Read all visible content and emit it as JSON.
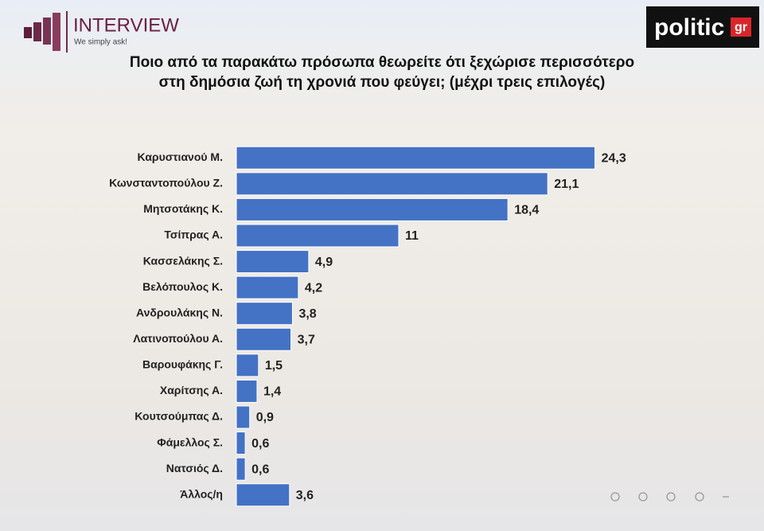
{
  "branding": {
    "left_logo": "INTERVIEW",
    "left_tagline": "We simply ask!",
    "right_logo": "politic",
    "right_logo_suffix": "gr"
  },
  "chart_data": {
    "type": "bar",
    "orientation": "horizontal",
    "title": "Ποιο από τα παρακάτω πρόσωπα θεωρείτε ότι ξεχώρισε περισσότερο στη δημόσια ζωή τη χρονιά που φεύγει; (μέχρι τρεις επιλογές)",
    "categories": [
      "Καρυστιανού Μ.",
      "Κωνσταντοπούλου Ζ.",
      "Μητσοτάκης Κ.",
      "Τσίπρας Α.",
      "Κασσελάκης Σ.",
      "Βελόπουλος Κ.",
      "Ανδρουλάκης Ν.",
      "Λατινοπούλου Α.",
      "Βαρουφάκης Γ.",
      "Χαρίτσης Α.",
      "Κουτσούμπας Δ.",
      "Φάμελλος Σ.",
      "Νατσιός Δ.",
      "Άλλος/η"
    ],
    "values": [
      24.3,
      21.1,
      18.4,
      11,
      4.9,
      4.2,
      3.8,
      3.7,
      1.5,
      1.4,
      0.9,
      0.6,
      0.6,
      3.6
    ],
    "value_labels": [
      "24,3",
      "21,1",
      "18,4",
      "11",
      "4,9",
      "4,2",
      "3,8",
      "3,7",
      "1,5",
      "1,4",
      "0,9",
      "0,6",
      "0,6",
      "3,6"
    ],
    "color": "#4472c4",
    "xlim": [
      0,
      35
    ]
  }
}
